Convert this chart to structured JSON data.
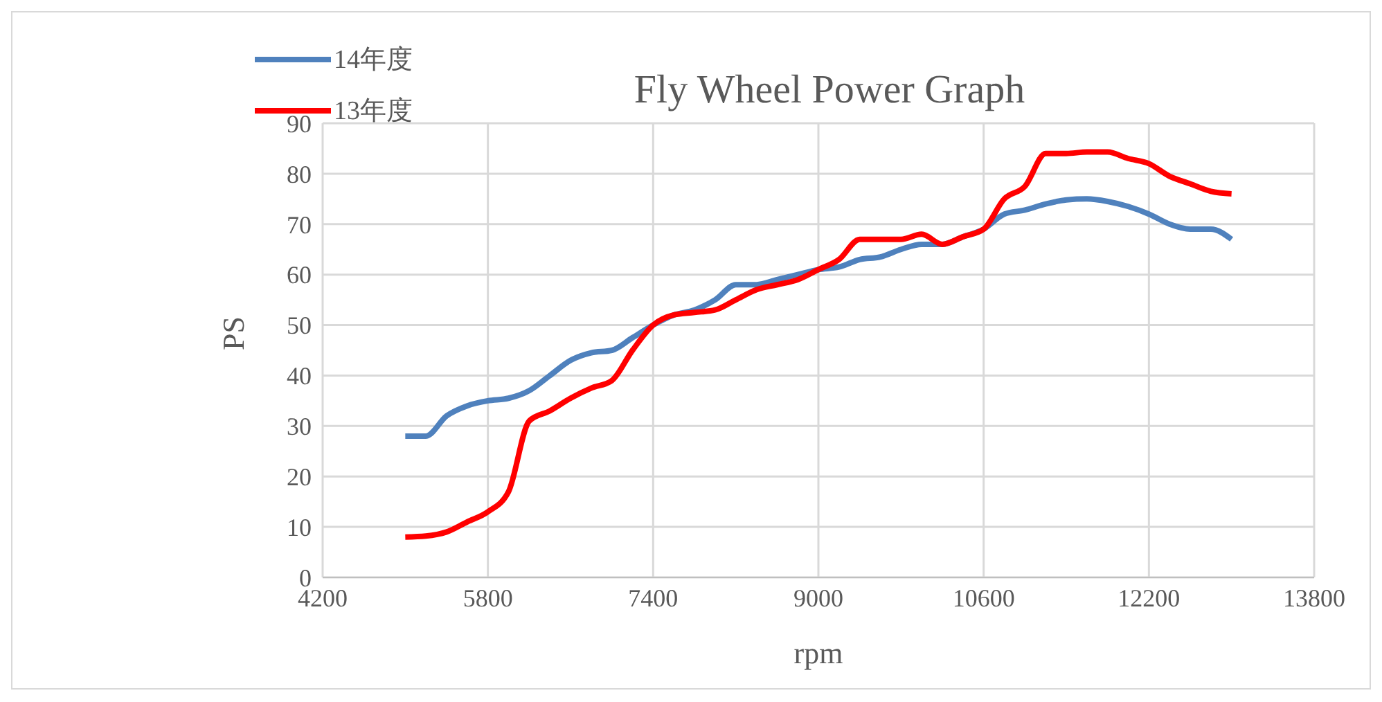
{
  "chart_data": {
    "type": "line",
    "title": "Fly Wheel Power Graph",
    "xlabel": "rpm",
    "ylabel": "PS",
    "x": [
      5000,
      5200,
      5400,
      5600,
      5800,
      6000,
      6200,
      6400,
      6600,
      6800,
      7000,
      7200,
      7400,
      7600,
      7800,
      8000,
      8200,
      8400,
      8600,
      8800,
      9000,
      9200,
      9400,
      9600,
      9800,
      10000,
      10200,
      10400,
      10600,
      10800,
      11000,
      11200,
      11400,
      11600,
      11800,
      12000,
      12200,
      12400,
      12600,
      12800,
      13000
    ],
    "series": [
      {
        "name": "14年度",
        "color": "#4f81bd",
        "values": [
          28,
          28,
          32,
          34,
          35,
          35.5,
          37,
          40,
          43,
          44.5,
          45,
          47.5,
          50,
          52,
          53,
          55,
          58,
          58,
          59,
          60,
          61,
          61.5,
          63,
          63.5,
          65,
          66,
          66,
          67.5,
          69,
          72,
          72.8,
          74,
          74.8,
          75,
          74.5,
          73.5,
          72,
          70,
          69,
          69,
          67
        ]
      },
      {
        "name": "13年度",
        "color": "#ff0000",
        "values": [
          8,
          8.2,
          9,
          11,
          13,
          17,
          31,
          33,
          35.5,
          37.5,
          39,
          45,
          50,
          52,
          52.5,
          53,
          55,
          57,
          58,
          59,
          61,
          63,
          67,
          67,
          67,
          68,
          66,
          67.5,
          69,
          75,
          77.5,
          84,
          84,
          84.3,
          84.3,
          83,
          82,
          79.5,
          78,
          76.5,
          76
        ]
      }
    ],
    "xlim": [
      4200,
      13800
    ],
    "xticks": [
      4200,
      5800,
      7400,
      9000,
      10600,
      12200,
      13800
    ],
    "ylim": [
      0,
      90
    ],
    "yticks": [
      0,
      10,
      20,
      30,
      40,
      50,
      60,
      70,
      80,
      90
    ],
    "grid": true,
    "legend": "top left",
    "marker": "none",
    "line_style": "solid"
  }
}
